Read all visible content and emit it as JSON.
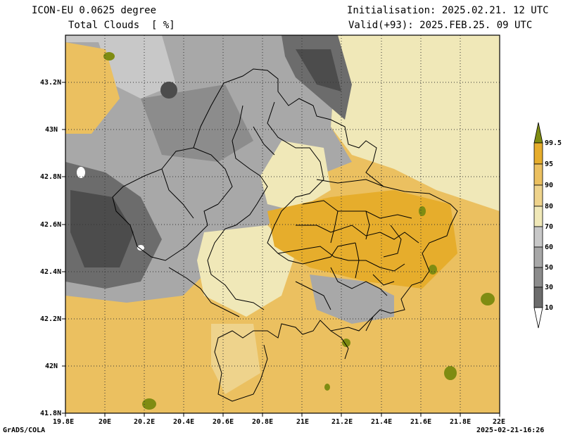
{
  "header": {
    "model": "ICON-EU 0.0625 degree",
    "variable": "Total Clouds  [ %]",
    "initialisation": "Initialisation: 2025.02.21. 12 UTC",
    "valid": "Valid(+93): 2025.FEB.25. 09 UTC"
  },
  "axes": {
    "lat_ticks": [
      "43.2N",
      "43N",
      "42.8N",
      "42.6N",
      "42.4N",
      "42.2N",
      "42N",
      "41.8N"
    ],
    "lon_ticks": [
      "19.8E",
      "20E",
      "20.2E",
      "20.4E",
      "20.6E",
      "20.8E",
      "21E",
      "21.2E",
      "21.4E",
      "21.6E",
      "21.8E",
      "22E"
    ]
  },
  "colorbar": {
    "labels": [
      "99.5",
      "95",
      "90",
      "80",
      "70",
      "60",
      "50",
      "30",
      "10"
    ],
    "colors": [
      "#7f8c12",
      "#e6ad2c",
      "#ebc060",
      "#eed38c",
      "#f0e8b8",
      "#c8c8c8",
      "#a8a8a8",
      "#8c8c8c",
      "#6c6c6c",
      "#4c4c4c",
      "#ffffff"
    ]
  },
  "footer": {
    "left": "GrADS/COLA",
    "right": "2025-02-21-16:26"
  }
}
